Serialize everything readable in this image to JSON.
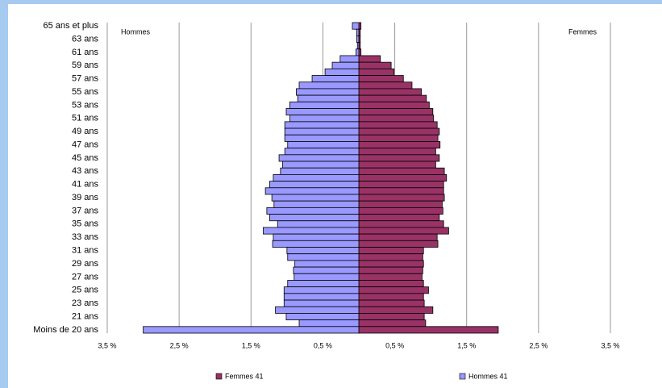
{
  "chart_data": {
    "type": "pyramid",
    "annotations": [
      "Hommes",
      "Femmes"
    ],
    "categories": [
      "65 ans et plus",
      null,
      "63 ans",
      null,
      "61 ans",
      null,
      "59 ans",
      null,
      "57 ans",
      null,
      "55 ans",
      null,
      "53 ans",
      null,
      "51 ans",
      null,
      "49 ans",
      null,
      "47 ans",
      null,
      "45 ans",
      null,
      "43 ans",
      null,
      "41 ans",
      null,
      "39 ans",
      null,
      "37 ans",
      null,
      "35 ans",
      null,
      "33 ans",
      null,
      "31 ans",
      null,
      "29 ans",
      null,
      "27 ans",
      null,
      "25 ans",
      null,
      "23 ans",
      null,
      "21 ans",
      null,
      "Moins de 20 ans"
    ],
    "series": [
      {
        "name": "Femmes 41",
        "color": "#993366",
        "side": "right",
        "values": [
          0.03,
          0.02,
          0.02,
          0.02,
          0.03,
          0.3,
          0.45,
          0.49,
          0.62,
          0.74,
          0.87,
          0.94,
          0.98,
          1.03,
          1.04,
          1.09,
          1.12,
          1.1,
          1.13,
          1.07,
          1.12,
          1.07,
          1.19,
          1.22,
          1.18,
          1.18,
          1.19,
          1.16,
          1.17,
          1.12,
          1.18,
          1.25,
          1.09,
          1.1,
          0.9,
          0.89,
          0.9,
          0.89,
          0.88,
          0.9,
          0.97,
          0.9,
          0.91,
          1.03,
          0.91,
          0.93,
          1.94
        ]
      },
      {
        "name": "Hommes 41",
        "color": "#9999ff",
        "side": "left",
        "values": [
          0.09,
          0.03,
          0.03,
          0.02,
          0.04,
          0.26,
          0.37,
          0.47,
          0.65,
          0.83,
          0.87,
          0.85,
          0.96,
          1.01,
          0.96,
          1.03,
          1.03,
          1.03,
          0.99,
          1.03,
          1.11,
          1.06,
          1.09,
          1.19,
          1.24,
          1.3,
          1.21,
          1.18,
          1.28,
          1.24,
          1.13,
          1.33,
          1.19,
          1.2,
          1.0,
          0.99,
          0.89,
          0.91,
          0.9,
          0.99,
          1.04,
          1.04,
          1.04,
          1.16,
          1.01,
          0.83,
          3.0
        ]
      }
    ],
    "xlim": [
      -3.5,
      3.5
    ],
    "xticks": [
      {
        "value": -3.5,
        "label": "3,5 %"
      },
      {
        "value": -2.5,
        "label": "2,5 %"
      },
      {
        "value": -1.5,
        "label": "1,5 %"
      },
      {
        "value": -0.5,
        "label": "0,5 %"
      },
      {
        "value": 0.5,
        "label": "0,5 %"
      },
      {
        "value": 1.5,
        "label": "1,5 %"
      },
      {
        "value": 2.5,
        "label": "2,5 %"
      },
      {
        "value": 3.5,
        "label": "3,5 %"
      }
    ],
    "grid": true
  }
}
